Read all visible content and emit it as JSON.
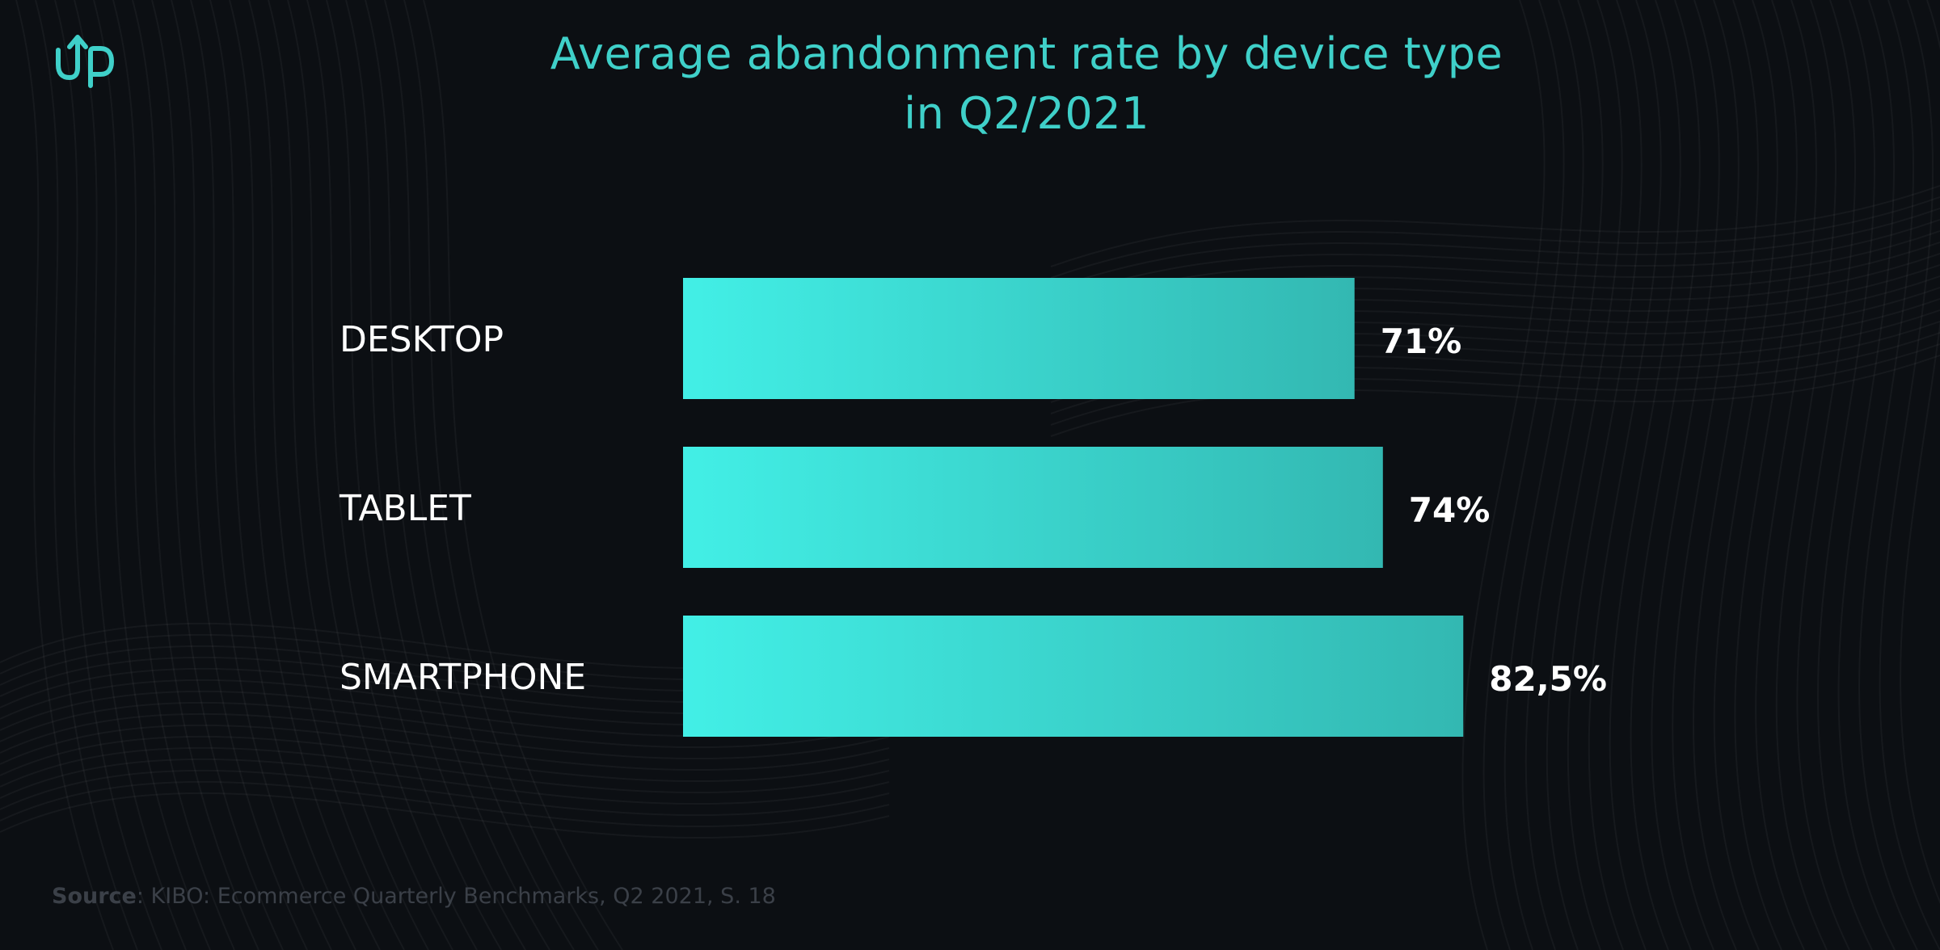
{
  "brand": {
    "logo_text": "up",
    "accent_color": "#3fd0c9"
  },
  "chart_data": {
    "type": "bar",
    "orientation": "horizontal",
    "title": "Average abandonment rate by device type in Q2/2021",
    "title_lines": [
      "Average abandonment rate by device type",
      "in Q2/2021"
    ],
    "categories": [
      "DESKTOP",
      "TABLET",
      "SMARTPHONE"
    ],
    "values": [
      71,
      74,
      82.5
    ],
    "value_labels": [
      "71%",
      "74%",
      "82,5%"
    ],
    "unit": "%",
    "xlim": [
      0,
      100
    ],
    "xlabel": "",
    "ylabel": "",
    "grid": false,
    "legend": "none",
    "bar_gradient": [
      "#42efe6",
      "#33b8b2"
    ]
  },
  "source": {
    "label": "Source",
    "text": ": KIBO: Ecommerce Quarterly Benchmarks, Q2 2021, S. 18"
  }
}
